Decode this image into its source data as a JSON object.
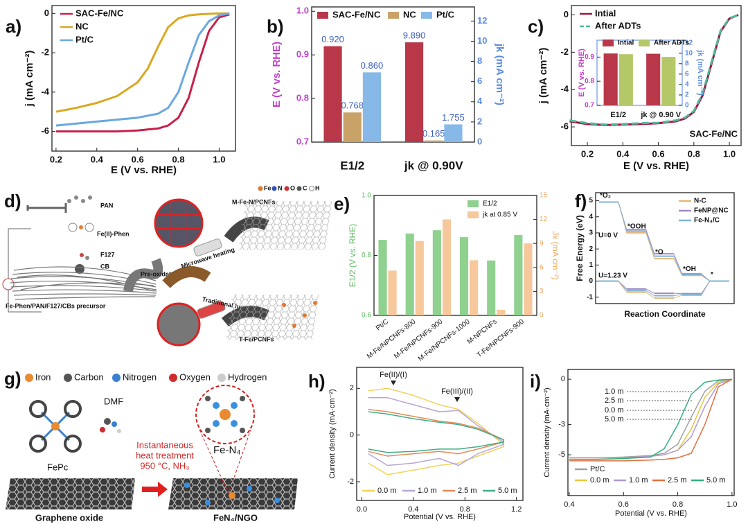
{
  "chart_data": [
    {
      "label": "a)",
      "type": "line",
      "xlabel": "E (V vs. RHE)",
      "ylabel": "j (mA cm⁻²)",
      "x": [
        0.2,
        0.3,
        0.4,
        0.5,
        0.6,
        0.65,
        0.7,
        0.75,
        0.8,
        0.85,
        0.9,
        0.95,
        1.0,
        1.05
      ],
      "series": [
        {
          "name": "SAC-Fe/NC",
          "color": "#c8204a",
          "values": [
            -6.0,
            -6.0,
            -6.0,
            -6.0,
            -5.95,
            -5.9,
            -5.85,
            -5.7,
            -5.3,
            -4.3,
            -2.5,
            -0.9,
            -0.2,
            -0.05
          ]
        },
        {
          "name": "NC",
          "color": "#d9a821",
          "values": [
            -5.0,
            -4.8,
            -4.55,
            -4.2,
            -3.5,
            -2.8,
            -1.7,
            -0.7,
            -0.25,
            -0.1,
            -0.05,
            -0.02,
            0,
            0
          ]
        },
        {
          "name": "Pt/C",
          "color": "#6aa8e0",
          "values": [
            -5.7,
            -5.6,
            -5.5,
            -5.4,
            -5.3,
            -5.2,
            -5.1,
            -4.8,
            -4.0,
            -2.5,
            -1.1,
            -0.4,
            -0.1,
            0
          ]
        }
      ],
      "xlim": [
        0.18,
        1.08
      ],
      "ylim": [
        -7,
        0.4
      ],
      "xticks": [
        0.2,
        0.4,
        0.6,
        0.8,
        {
          "value": 1,
          "label": "1.0"
        }
      ],
      "yticks": [
        0,
        -2,
        -4,
        -6
      ],
      "legend": "upper left"
    },
    {
      "label": "b)",
      "type": "bar",
      "categories": [
        "E1/2",
        "jk @ 0.90V"
      ],
      "category_axes": [
        "y",
        "y2"
      ],
      "series": [
        {
          "name": "SAC-Fe/NC",
          "color": "#b8384a",
          "values": [
            0.92,
            9.89
          ],
          "value_labels": [
            "0.920",
            "9.890"
          ]
        },
        {
          "name": "NC",
          "color": "#c9a268",
          "values": [
            0.768,
            0.165
          ],
          "value_labels": [
            "0.768",
            "0.165"
          ]
        },
        {
          "name": "Pt/C",
          "color": "#86b8e8",
          "values": [
            0.86,
            1.755
          ],
          "value_labels": [
            "0.860",
            "1.755"
          ]
        }
      ],
      "ylabel": "E (V vs. RHE)",
      "y2label": "jk (mA cm⁻²)",
      "y_color": "#c040c8",
      "y2_color": "#5a8ae0",
      "ylim": [
        0.7,
        1.01
      ],
      "y2lim": [
        0,
        13.4
      ],
      "yticks": [
        0.7,
        0.8,
        0.9,
        {
          "value": 1,
          "label": "1.0"
        }
      ],
      "y2ticks": [
        0,
        2,
        4,
        6,
        8,
        10,
        12
      ],
      "legend": "upper center"
    },
    {
      "label": "c)",
      "type": "line",
      "xlabel": "E (V vs. RHE)",
      "ylabel": "j (mA cm⁻²)",
      "annotations": [
        "SAC-Fe/NC"
      ],
      "x": [
        0.1,
        0.2,
        0.3,
        0.4,
        0.5,
        0.6,
        0.7,
        0.75,
        0.8,
        0.85,
        0.9,
        0.95,
        1.0,
        1.05
      ],
      "series": [
        {
          "name": "Intial",
          "color": "#a01840",
          "values": [
            -5.7,
            -5.85,
            -5.9,
            -5.88,
            -5.85,
            -5.8,
            -5.7,
            -5.55,
            -5.2,
            -4.3,
            -2.6,
            -0.9,
            -0.2,
            0
          ]
        },
        {
          "name": "After ADTs",
          "color": "#50b8a0",
          "dashed": true,
          "values": [
            -5.65,
            -5.8,
            -5.88,
            -5.85,
            -5.8,
            -5.78,
            -5.65,
            -5.5,
            -5.15,
            -4.2,
            -2.5,
            -0.85,
            -0.18,
            0
          ]
        }
      ],
      "xlim": [
        0.11,
        1.066
      ],
      "ylim": [
        -7,
        0.5
      ],
      "xticks": [
        0.2,
        0.4,
        0.6,
        0.8,
        {
          "value": 1,
          "label": "1.0"
        }
      ],
      "yticks": [
        0,
        -2,
        -4,
        -6
      ],
      "legend": "upper left"
    },
    {
      "type": "bar",
      "categories": [
        "E1/2",
        "jk @ 0.90 V"
      ],
      "category_axes": [
        "y",
        "y2"
      ],
      "series": [
        {
          "name": "Intial",
          "color": "#b8384a",
          "values": [
            0.915,
            9.9
          ]
        },
        {
          "name": "After ADTs",
          "color": "#b5c868",
          "values": [
            0.912,
            9.3
          ]
        }
      ],
      "ylabel": "E (V vs. RHE)",
      "y2label": "jk (mA cm⁻²)",
      "y_color": "#c040c8",
      "y2_color": "#5a8ae0",
      "ylim": [
        0.7,
        0.97
      ],
      "y2lim": [
        0,
        12.5
      ],
      "yticks": [
        0.7,
        0.8,
        0.9
      ],
      "y2ticks": [
        0,
        2,
        4,
        6,
        8,
        10,
        12
      ],
      "legend": "upper center"
    },
    {
      "label": "e)",
      "type": "bar",
      "categories": [
        "Pt/C",
        "M-Fe/NPCNFs-800",
        "M-Fe/NPCNFs-900",
        "M-Fe/NPCNFs-1000",
        "M-NPCNFs",
        "T-Fe/NPCNFs-900"
      ],
      "series": [
        {
          "name": "E1/2",
          "color": "#8fd18f",
          "values": [
            0.852,
            0.873,
            0.884,
            0.861,
            0.783,
            0.868
          ]
        },
        {
          "name": "jk at 0.85 V",
          "color": "#f7c89b",
          "axis": "y2",
          "values": [
            5.6,
            9.3,
            12.0,
            6.9,
            0.7,
            9.0
          ]
        }
      ],
      "ylabel": "E1/2 (V vs. RHE)",
      "y2label": "Jk (mA cm⁻²)",
      "y_color": "#5cb85c",
      "y2_color": "#f0a860",
      "ylim": [
        0.6,
        1.0
      ],
      "y2lim": [
        0,
        15
      ],
      "yticks": [
        0.6,
        0.8,
        {
          "value": 1,
          "label": "1.0"
        }
      ],
      "y2ticks": [
        0,
        3,
        6,
        9,
        12,
        15
      ],
      "legend": "upper right"
    },
    {
      "label": "f)",
      "type": "step",
      "categories": [
        "*O₂",
        "*OOH",
        "*O",
        "*OH",
        "*"
      ],
      "annotations": [
        "U=0 V",
        "U=1.23 V"
      ],
      "series": [
        {
          "name": "N-C",
          "color": "#e8b878",
          "values": [
            4.92,
            3.0,
            1.4,
            0.35,
            0
          ],
          "values_u_1_23": [
            0,
            -0.69,
            -1.06,
            -0.88,
            0
          ]
        },
        {
          "name": "FeNP@NC",
          "color": "#a08ac4",
          "values": [
            4.92,
            3.2,
            1.7,
            0.45,
            0
          ],
          "values_u_1_23": [
            0,
            -0.49,
            -0.76,
            -0.78,
            0
          ]
        },
        {
          "name": "Fe-N₄/C",
          "color": "#7fb3d5",
          "values": [
            4.92,
            3.1,
            1.55,
            0.4,
            0
          ],
          "values_u_1_23": [
            0,
            -0.59,
            -0.91,
            -0.83,
            0
          ]
        }
      ],
      "xlabel": "Reaction Coordinate",
      "ylabel": "Free Energy (eV)",
      "ylim": [
        -1.4,
        5.5
      ],
      "yticks": [
        -1,
        0,
        1,
        2,
        3,
        4,
        5
      ],
      "legend": "upper right"
    },
    {
      "label": "h)",
      "type": "line",
      "xlabel": "Potential (V vs. RHE)",
      "ylabel": "Current density (mA·cm⁻²)",
      "annotations": [
        "Fe(II)/(I)",
        "Fe(III)/(II)"
      ],
      "x": [
        0.05,
        0.2,
        0.4,
        0.6,
        0.75,
        0.9,
        1.1,
        1.1,
        0.9,
        0.75,
        0.6,
        0.4,
        0.2,
        0.05
      ],
      "series": [
        {
          "name": "0.0 m",
          "color": "#f2d25a",
          "values": [
            1.9,
            2.0,
            1.7,
            1.3,
            1.1,
            0.5,
            -0.4,
            -0.5,
            -0.9,
            -1.2,
            -1.3,
            -1.5,
            -1.7,
            -1.2
          ]
        },
        {
          "name": "1.0 m",
          "color": "#b7a6d2",
          "values": [
            1.6,
            1.6,
            1.3,
            1.0,
            1.05,
            0.4,
            -0.3,
            -0.4,
            -0.8,
            -1.3,
            -1.0,
            -1.2,
            -1.3,
            -0.8
          ]
        },
        {
          "name": "2.5 m",
          "color": "#e48a55",
          "values": [
            1.1,
            1.0,
            0.8,
            0.6,
            0.5,
            0.3,
            -0.2,
            -0.3,
            -0.6,
            -0.8,
            -0.7,
            -0.8,
            -0.9,
            -0.7
          ]
        },
        {
          "name": "5.0 m",
          "color": "#3fae84",
          "values": [
            1.0,
            0.9,
            0.7,
            0.55,
            0.45,
            0.25,
            -0.2,
            -0.3,
            -0.5,
            -0.6,
            -0.6,
            -0.7,
            -0.75,
            -0.6
          ]
        }
      ],
      "xlim": [
        -0.04,
        1.25
      ],
      "ylim": [
        -2.8,
        2.9
      ],
      "xticks": [
        {
          "value": 0,
          "label": "0.0"
        },
        0.4,
        0.8,
        1.2
      ],
      "yticks": [
        -2,
        0,
        2
      ],
      "legend": "lower center"
    },
    {
      "label": "i)",
      "type": "line",
      "xlabel": "Potential (V vs. RHE)",
      "ylabel": "Current density (mA·cm⁻²)",
      "annotations": [
        "1.0 m",
        "2.5 m",
        "0.0 m",
        "5.0 m"
      ],
      "x": [
        0.4,
        0.5,
        0.6,
        0.7,
        0.75,
        0.8,
        0.85,
        0.9,
        0.95,
        1.0
      ],
      "series": [
        {
          "name": "Pt/C",
          "color": "#a0a0a0",
          "values": [
            -5.2,
            -5.2,
            -5.15,
            -5.05,
            -4.9,
            -4.3,
            -2.5,
            -0.8,
            -0.1,
            0
          ]
        },
        {
          "name": "0.0 m",
          "color": "#e8c840",
          "values": [
            -5.2,
            -5.2,
            -5.2,
            -5.1,
            -5.0,
            -4.7,
            -3.3,
            -1.2,
            -0.2,
            0
          ]
        },
        {
          "name": "1.0 m",
          "color": "#b098d0",
          "values": [
            -5.2,
            -5.2,
            -5.2,
            -5.1,
            -5.0,
            -4.7,
            -3.8,
            -1.8,
            -0.3,
            0
          ]
        },
        {
          "name": "2.5 m",
          "color": "#e07040",
          "values": [
            -5.4,
            -5.4,
            -5.4,
            -5.35,
            -5.3,
            -5.2,
            -4.9,
            -3.0,
            -0.5,
            0
          ]
        },
        {
          "name": "5.0 m",
          "color": "#30b080",
          "values": [
            -5.3,
            -5.3,
            -5.25,
            -5.15,
            -4.6,
            -3.0,
            -1.0,
            -0.2,
            -0.05,
            0
          ]
        }
      ],
      "xlim": [
        0.395,
        1.008
      ],
      "ylim": [
        -7.7,
        0.65
      ],
      "xticks": [
        0.4,
        0.6,
        0.8,
        {
          "value": 1,
          "label": "1.0"
        }
      ],
      "yticks": [
        0,
        -3,
        -5
      ],
      "legend": "lower left"
    }
  ],
  "diagrams": {
    "d": {
      "label": "d)",
      "atoms": [
        "Fe",
        "N",
        "O",
        "C",
        "H"
      ],
      "texts": [
        "PAN",
        "Fe(II)-Phen",
        "F127",
        "CB",
        "Fe-Phen/PAN/F127/CBs precursor",
        "Pre-oxidation",
        "Microwave heating",
        "Traditional heating",
        "M-Fe-N/PCNFs",
        "T-Fe/PCNFs"
      ]
    },
    "g": {
      "label": "g)",
      "legend": [
        "Iron",
        "Carbon",
        "Nitrogen",
        "Oxygen",
        "Hydrogen"
      ],
      "texts": [
        "DMF",
        "FePc",
        "Instantaneous",
        "heat treatment",
        "950 °C, NH₃",
        "Fe-N₄",
        "Graphene oxide",
        "FeN₄/NGO"
      ]
    }
  }
}
